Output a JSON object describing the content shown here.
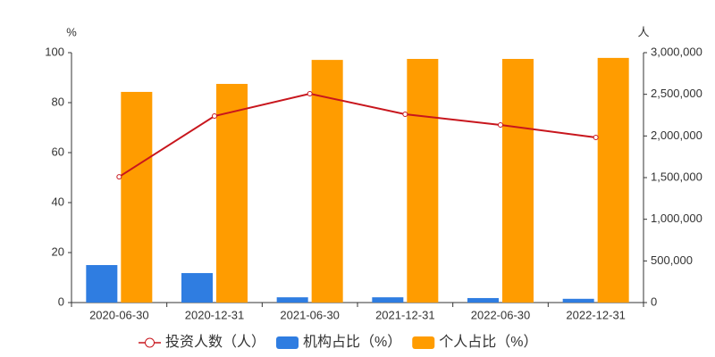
{
  "chart_data": {
    "type": "bar",
    "y_unit": "%",
    "y2_unit": "人",
    "categories": [
      "2020-06-30",
      "2020-12-31",
      "2021-06-30",
      "2021-12-31",
      "2022-06-30",
      "2022-12-31"
    ],
    "series": [
      {
        "name": "投资人数（人）",
        "type": "line",
        "axis": "y2",
        "color": "#c8161d",
        "values": [
          1510000,
          2239000,
          2507000,
          2261000,
          2132000,
          1982000
        ]
      },
      {
        "name": "机构占比（%）",
        "type": "bar",
        "color": "#2f7de1",
        "values": [
          15.0,
          11.8,
          2.1,
          2.1,
          1.8,
          1.5
        ]
      },
      {
        "name": "个人占比（%）",
        "type": "bar",
        "color": "#ff9c00",
        "values": [
          84.3,
          87.5,
          97.1,
          97.5,
          97.5,
          97.9
        ]
      }
    ],
    "ylim": [
      0,
      100
    ],
    "yticks": [
      0,
      20,
      40,
      60,
      80,
      100
    ],
    "y2lim": [
      0,
      3000000
    ],
    "y2ticks": [
      0,
      {
        "value": 500000,
        "label": "500,000"
      },
      {
        "value": 1000000,
        "label": "1,000,000"
      },
      {
        "value": 1500000,
        "label": "1,500,000"
      },
      {
        "value": 2000000,
        "label": "2,000,000"
      },
      {
        "value": 2500000,
        "label": "2,500,000"
      },
      {
        "value": 3000000,
        "label": "3,000,000"
      }
    ],
    "legend": "bottom",
    "grid": false
  }
}
